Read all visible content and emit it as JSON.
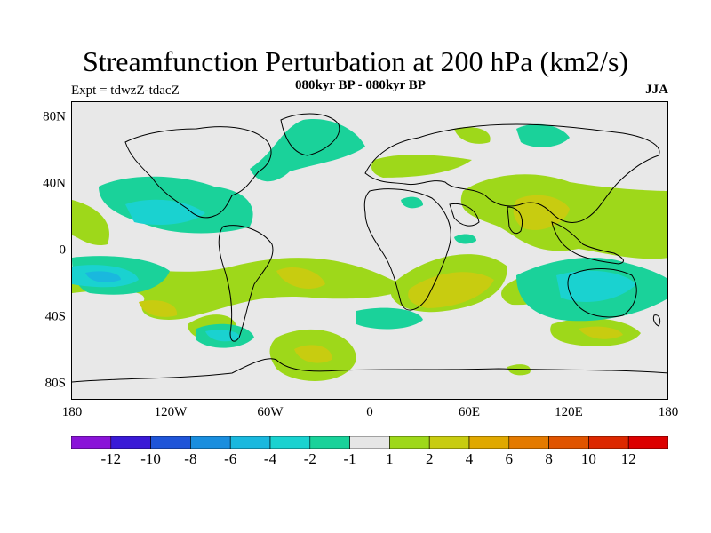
{
  "title": "Streamfunction Perturbation at 200 hPa (km2/s)",
  "subtitle": "080kyr BP - 080kyr BP",
  "left_label": "Expt = tdwzZ-tdacZ",
  "right_label": "JJA",
  "lat_ticks": [
    "80N",
    "40N",
    "0",
    "40S",
    "80S"
  ],
  "lon_ticks": [
    "180",
    "120W",
    "60W",
    "0",
    "60E",
    "120E",
    "180"
  ],
  "colorbar": {
    "labels": [
      "-12",
      "-10",
      "-8",
      "-6",
      "-4",
      "-2",
      "-1",
      "1",
      "2",
      "4",
      "6",
      "8",
      "10",
      "12"
    ],
    "colors": [
      "#8a13d8",
      "#3a1ad6",
      "#1f55d8",
      "#1a8ede",
      "#1ab8de",
      "#1ad2d0",
      "#1ad29a",
      "#e6e6e6",
      "#9ed81a",
      "#c8cc10",
      "#e0a800",
      "#e47a00",
      "#e05400",
      "#dc2800",
      "#dc0000"
    ]
  },
  "colors": {
    "background": "#e8e8e8",
    "pos_2": "#9ed81a",
    "pos_4": "#c8cc10",
    "pos_6": "#e0a800",
    "neg_2": "#1ad29a",
    "neg_4": "#1ad2d0",
    "neg_6": "#1ab8de"
  }
}
